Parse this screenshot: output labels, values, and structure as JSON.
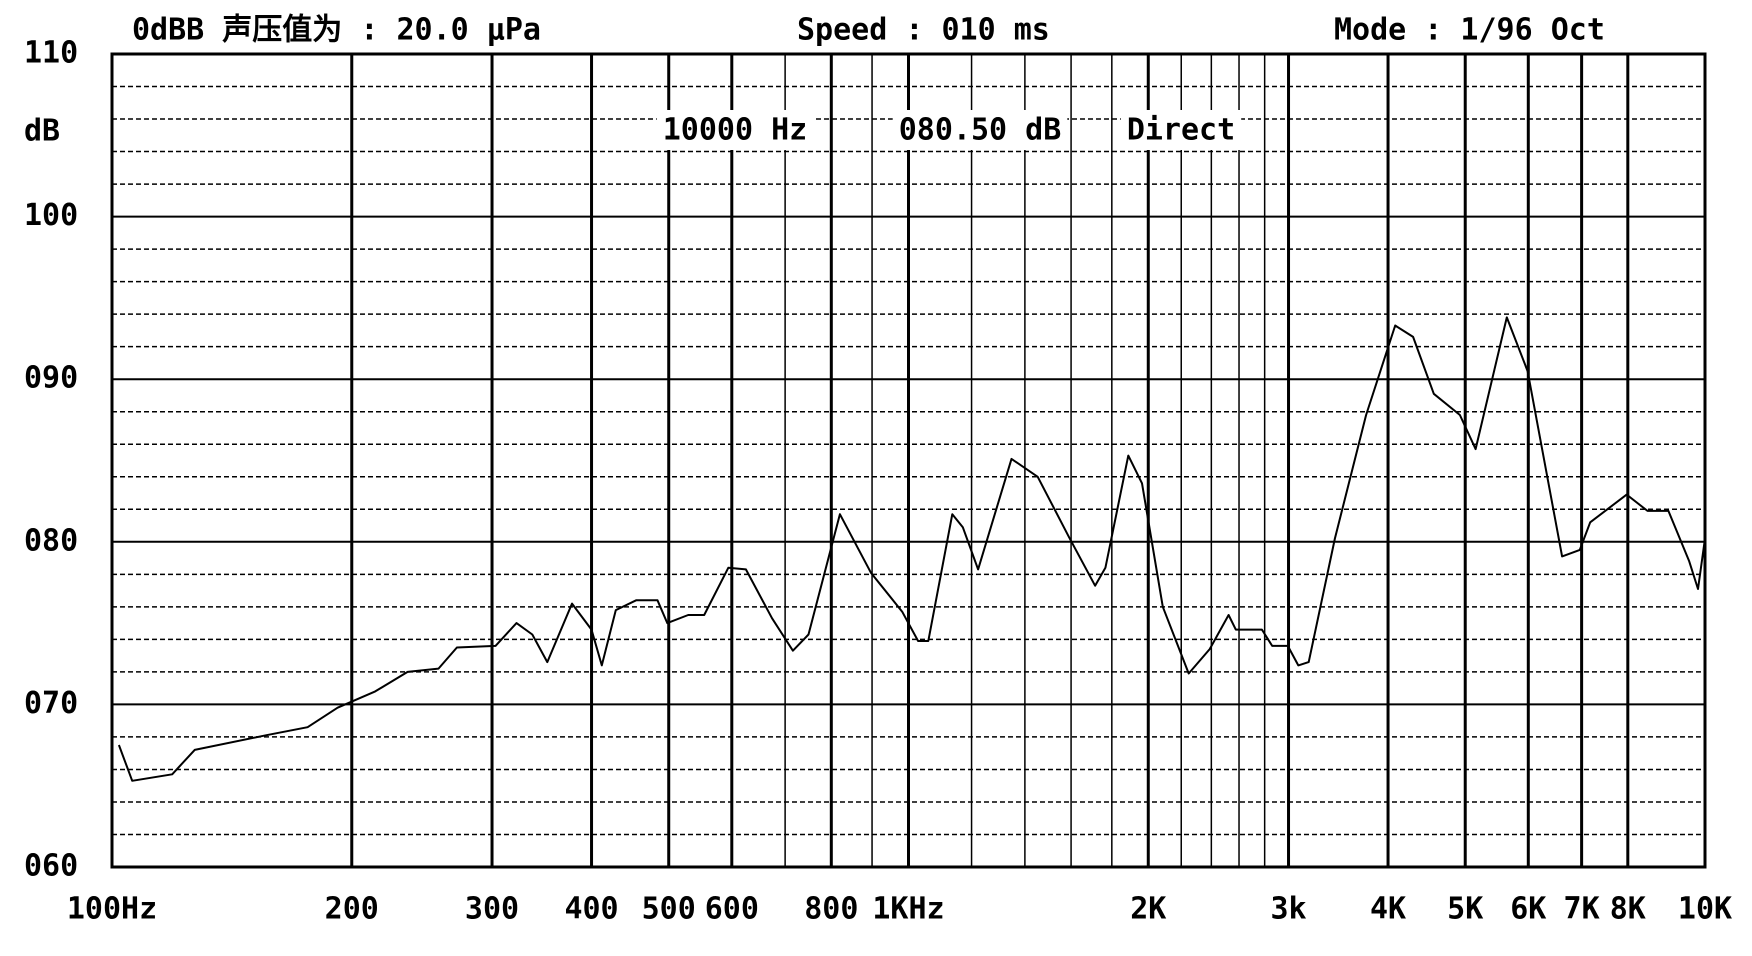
{
  "chart_data": {
    "type": "line",
    "header": [
      "0dBB 声压值为 : 20.0 μPa",
      "Speed : 010 ms",
      "Mode : 1/96 Oct"
    ],
    "readout": [
      "10000 Hz",
      "080.50 dB",
      "Direct"
    ],
    "ylabel": "dB",
    "xscale": "log",
    "xlim": [
      100,
      10000
    ],
    "ylim": [
      60,
      110
    ],
    "xticks": [
      {
        "value": 100,
        "label": "100Hz"
      },
      200,
      300,
      400,
      500,
      600,
      800,
      {
        "value": 1000,
        "label": "1KHz"
      },
      {
        "value": 2000,
        "label": "2K"
      },
      {
        "value": 3000,
        "label": "3k"
      },
      {
        "value": 4000,
        "label": "4K"
      },
      {
        "value": 5000,
        "label": "5K"
      },
      {
        "value": 6000,
        "label": "6K"
      },
      {
        "value": 7000,
        "label": "7K"
      },
      {
        "value": 8000,
        "label": "8K"
      },
      {
        "value": 10000,
        "label": "10K"
      }
    ],
    "xminor": [
      700,
      900,
      1200,
      1400,
      1600,
      1800,
      2200,
      2400,
      2600,
      2800
    ],
    "yticks": [
      {
        "value": 60,
        "label": "060"
      },
      {
        "value": 70,
        "label": "070"
      },
      {
        "value": 80,
        "label": "080"
      },
      {
        "value": 90,
        "label": "090"
      },
      100,
      110
    ],
    "yminor": [
      62,
      64,
      66,
      68,
      72,
      74,
      76,
      78,
      82,
      84,
      86,
      88,
      92,
      94,
      96,
      98,
      102,
      104,
      106,
      108
    ],
    "grid": true,
    "series": [
      {
        "color": "#000000",
        "x": [
          102,
          106,
          119,
          127,
          156,
          176,
          192,
          214,
          235,
          257,
          271,
          303,
          322,
          337,
          352,
          378,
          400,
          412,
          429,
          455,
          484,
          498,
          529,
          554,
          594,
          625,
          674,
          716,
          749,
          820,
          897,
          982,
          1028,
          1059,
          1135,
          1170,
          1223,
          1347,
          1453,
          1590,
          1715,
          1767,
          1888,
          1964,
          2086,
          2248,
          2389,
          2523,
          2576,
          2778,
          2862,
          2994,
          3086,
          3180,
          3430,
          3754,
          4084,
          4300,
          4566,
          4924,
          5152,
          5638,
          5988,
          6616,
          6964,
          7176,
          7974,
          8468,
          8996,
          9554,
          9800,
          10000
        ],
        "values": [
          67.5,
          65.3,
          65.7,
          67.2,
          68.1,
          68.6,
          69.8,
          70.8,
          72.0,
          72.2,
          73.5,
          73.6,
          75.0,
          74.3,
          72.6,
          76.2,
          74.6,
          72.4,
          75.8,
          76.4,
          76.4,
          75.0,
          75.5,
          75.5,
          78.4,
          78.3,
          75.3,
          73.3,
          74.3,
          81.7,
          78.1,
          75.7,
          73.9,
          73.9,
          81.7,
          80.9,
          78.3,
          85.1,
          84.0,
          80.3,
          77.3,
          78.4,
          85.3,
          83.6,
          76.0,
          71.9,
          73.4,
          75.5,
          74.6,
          74.6,
          73.6,
          73.6,
          72.4,
          72.6,
          80.2,
          87.8,
          93.3,
          92.6,
          89.1,
          87.8,
          85.7,
          93.8,
          90.5,
          79.1,
          79.5,
          81.2,
          82.9,
          81.9,
          81.9,
          78.8,
          77.1,
          80.2
        ]
      }
    ]
  }
}
